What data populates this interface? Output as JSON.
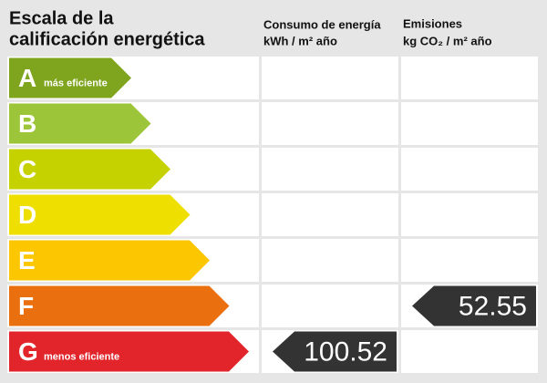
{
  "title_lines": [
    "Escala de la",
    "calificación energética"
  ],
  "columns": {
    "consumo": {
      "lines": [
        "Consumo de energía",
        "kWh / m² año"
      ]
    },
    "emisiones": {
      "lines": [
        "Emisiones",
        "kg CO₂ / m² año"
      ]
    }
  },
  "ratings": [
    {
      "letter": "A",
      "note": "más eficiente",
      "color": "#7fa51f"
    },
    {
      "letter": "B",
      "letter_only": true,
      "color": "#9dc53a"
    },
    {
      "letter": "C",
      "color": "#c6d200"
    },
    {
      "letter": "D",
      "color": "#eedf00"
    },
    {
      "letter": "E",
      "color": "#fcc600"
    },
    {
      "letter": "F",
      "color": "#ea6f0e"
    },
    {
      "letter": "G",
      "note": "menos eficiente",
      "color": "#e2242b"
    }
  ],
  "indicators": {
    "consumo": {
      "rating": "G",
      "value": 100.52
    },
    "emisiones": {
      "rating": "F",
      "value": 52.55
    }
  }
}
